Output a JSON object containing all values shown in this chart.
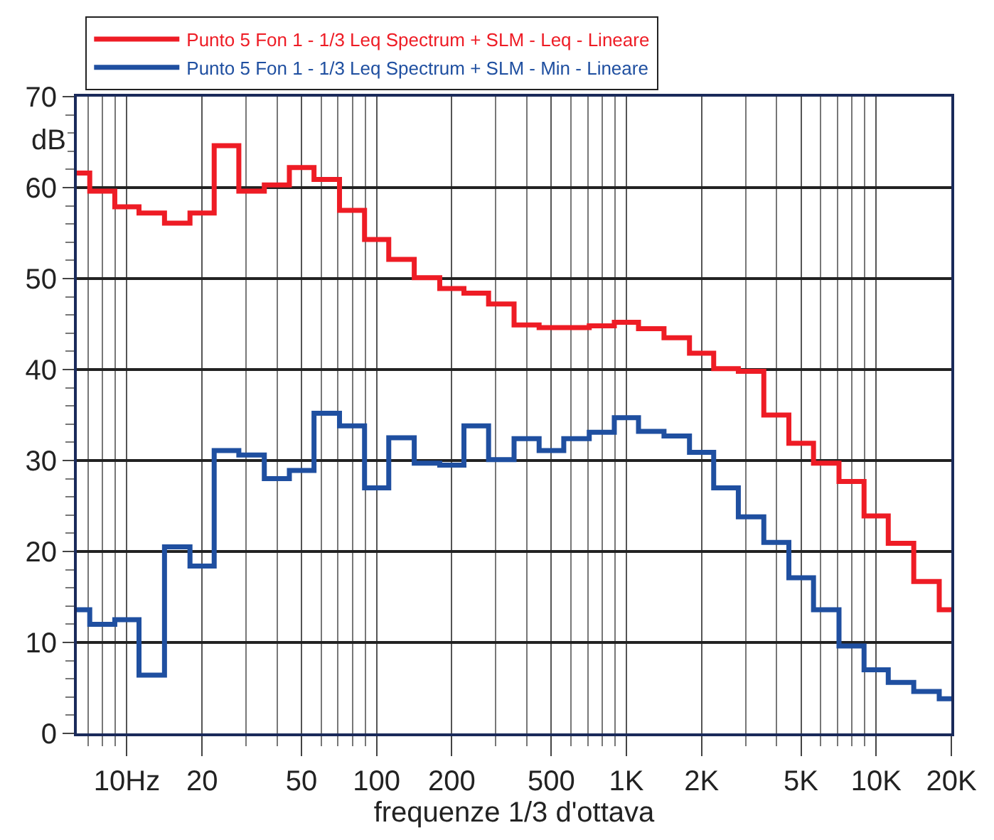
{
  "chart_data": {
    "type": "step",
    "xlabel": "frequenze 1/3 d'ottava",
    "ylabel": "dB",
    "log": "x",
    "x": [
      6.3,
      8,
      10,
      12.5,
      16,
      20,
      25,
      31.5,
      40,
      50,
      63,
      80,
      100,
      125,
      160,
      200,
      250,
      315,
      400,
      500,
      630,
      800,
      1000,
      1250,
      1600,
      2000,
      2500,
      3150,
      4000,
      5000,
      6300,
      8000,
      10000,
      12500,
      16000,
      20000
    ],
    "series": [
      {
        "name": "Punto 5 Fon 1 - 1/3 Leq Spectrum + SLM - Leq - Lineare",
        "color": "#ee1c25",
        "values": [
          61.6,
          59.6,
          57.9,
          57.2,
          56.1,
          57.2,
          64.6,
          59.6,
          60.3,
          62.2,
          60.9,
          57.5,
          54.3,
          52.1,
          50.1,
          48.9,
          48.4,
          47.2,
          44.9,
          44.6,
          44.6,
          44.8,
          45.2,
          44.5,
          43.5,
          41.8,
          40.1,
          39.8,
          35.0,
          31.9,
          29.7,
          27.7,
          23.9,
          20.9,
          16.7,
          13.6
        ]
      },
      {
        "name": "Punto 5 Fon 1 - 1/3 Leq Spectrum + SLM - Min - Lineare",
        "color": "#1f4fa0",
        "values": [
          13.6,
          12.0,
          12.5,
          6.4,
          20.5,
          18.4,
          31.1,
          30.6,
          28.0,
          28.9,
          35.2,
          33.8,
          27.0,
          32.5,
          29.7,
          29.5,
          33.8,
          30.1,
          32.4,
          31.1,
          32.4,
          33.1,
          34.7,
          33.2,
          32.7,
          30.9,
          27.0,
          23.8,
          21.0,
          17.1,
          13.6,
          9.6,
          7.0,
          5.6,
          4.6,
          3.8
        ]
      }
    ],
    "xlim": [
      6.3,
      20000
    ],
    "xticks": [
      {
        "value": 10,
        "label": "10Hz"
      },
      20,
      50,
      100,
      200,
      500,
      {
        "value": 1000,
        "label": "1K"
      },
      {
        "value": 2000,
        "label": "2K"
      },
      {
        "value": 5000,
        "label": "5K"
      },
      {
        "value": 10000,
        "label": "10K"
      },
      {
        "value": 20000,
        "label": "20K"
      }
    ],
    "ylim": [
      0,
      70
    ],
    "yticks": [
      0,
      10,
      20,
      30,
      40,
      50,
      60,
      70
    ],
    "grid": true,
    "legend": "top",
    "line_style": "solid",
    "marker": "none"
  }
}
